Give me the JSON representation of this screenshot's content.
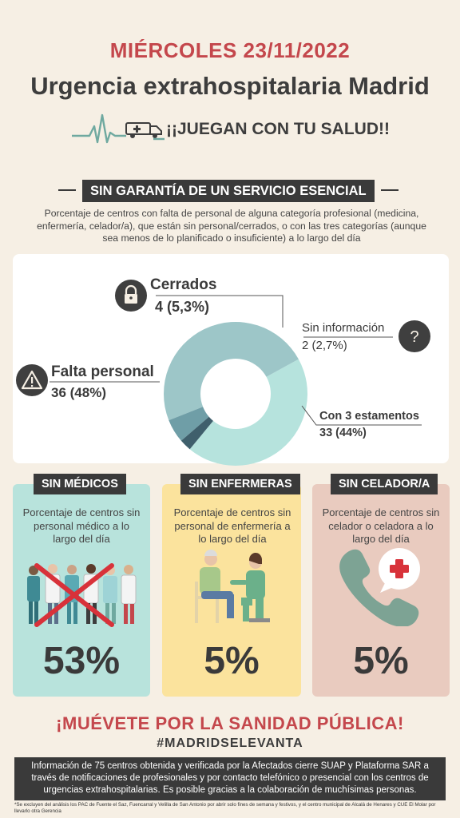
{
  "header": {
    "date": "MIÉRCOLES 23/11/2022",
    "title": "Urgencia extrahospitalaria Madrid",
    "tagline": "¡¡JUEGAN CON TU SALUD!!"
  },
  "section": {
    "heading": "SIN GARANTÍA DE UN SERVICIO  ESENCIAL",
    "intro": "Porcentaje de centros con falta de personal de alguna categoría profesional (medicina, enfermería, celador/a), que están sin personal/cerrados, o con las tres categorías (aunque sea menos de lo planificado o insuficiente) a lo largo del día"
  },
  "chart_data": {
    "type": "pie",
    "categories": [
      "Con 3 estamentos",
      "Falta personal",
      "Cerrados",
      "Sin información"
    ],
    "values": [
      33,
      36,
      4,
      2
    ],
    "percent_labels": [
      "33 (44%)",
      "36 (48%)",
      "4 (5,3%)",
      "2 (2,7%)"
    ],
    "colors": [
      "#b6e3dd",
      "#9dc6c8",
      "#6f9ea7",
      "#3f5f6c"
    ]
  },
  "legend": {
    "cerrados_name": "Cerrados",
    "cerrados_value": "4 (5,3%)",
    "sininfo_name": "Sin información",
    "sininfo_value": "2 (2,7%)",
    "falta_name": "Falta personal",
    "falta_value": "36 (48%)",
    "con3_name": "Con 3 estamentos",
    "con3_value": "33 (44%)"
  },
  "cards": [
    {
      "heading": "SIN MÉDICOS",
      "desc": "Porcentaje de centros sin personal médico a lo largo del día",
      "pct": "53%",
      "color": "#b8e3dc",
      "pct_value": 53
    },
    {
      "heading": "SIN ENFERMERAS",
      "desc": "Porcentaje de centros sin personal de enfermería a lo largo del día",
      "pct": "5%",
      "color": "#fbe39d",
      "pct_value": 5
    },
    {
      "heading": "SIN CELADOR/A",
      "desc": "Porcentaje de centros sin celador o celadora a lo largo del día",
      "pct": "5%",
      "color": "#e9cbbf",
      "pct_value": 5
    }
  ],
  "footer": {
    "cta": "¡MUÉVETE POR LA SANIDAD PÚBLICA!",
    "hashtag": "#MADRIDSELEVANTA",
    "info": "Información de 75 centros obtenida y verificada por la Afectados cierre SUAP y Plataforma SAR a través de notificaciones de profesionales y por contacto telefónico o presencial con los centros de urgencias extrahospitalarias. Es posible gracias a la colaboración de muchísimas personas.",
    "note": "*Se excluyen del análisis los PAC de Fuente el Saz, Fuencarral y Velilla de San Antonio por abrir solo fines de semana y festivos, y el centro municipal de Alcalá de Henares y CUE El Molar por llevarlo otra Gerencia"
  },
  "icons": [
    "heartbeat-icon",
    "ambulance-icon",
    "lock-icon",
    "question-icon",
    "warning-icon",
    "doctors-icon",
    "nurse-icon",
    "phone-icon"
  ]
}
